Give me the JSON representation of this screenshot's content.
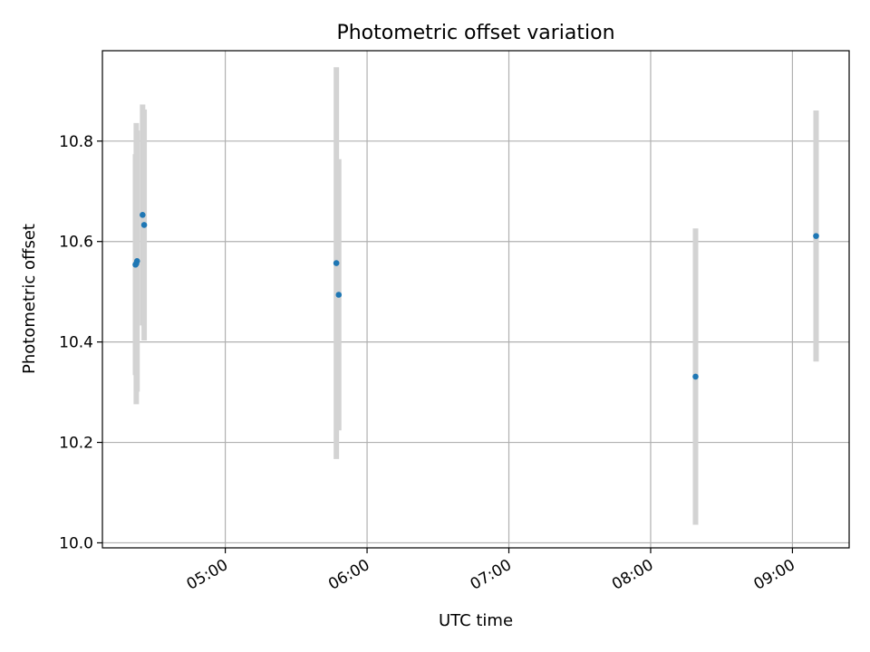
{
  "chart_data": {
    "type": "scatter",
    "title": "Photometric offset variation",
    "xlabel": "UTC time",
    "ylabel": "Photometric offset",
    "x_axis_kind": "time",
    "xlim": [
      "04:08",
      "09:24"
    ],
    "ylim": [
      9.99,
      10.98
    ],
    "x_ticks": [
      "05:00",
      "06:00",
      "07:00",
      "08:00",
      "09:00"
    ],
    "y_ticks": [
      "10.0",
      "10.2",
      "10.4",
      "10.6",
      "10.8"
    ],
    "grid": true,
    "marker_color": "#1f77b4",
    "errorbar_color": "#d3d3d3",
    "points": [
      {
        "x": "04:22:00",
        "y": 10.554,
        "err": 0.22
      },
      {
        "x": "04:22:20",
        "y": 10.556,
        "err": 0.28
      },
      {
        "x": "04:22:40",
        "y": 10.561,
        "err": 0.26
      },
      {
        "x": "04:25:00",
        "y": 10.653,
        "err": 0.22
      },
      {
        "x": "04:25:40",
        "y": 10.633,
        "err": 0.23
      },
      {
        "x": "05:47:00",
        "y": 10.557,
        "err": 0.39
      },
      {
        "x": "05:48:00",
        "y": 10.494,
        "err": 0.27
      },
      {
        "x": "08:19:00",
        "y": 10.331,
        "err": 0.295
      },
      {
        "x": "09:10:00",
        "y": 10.611,
        "err": 0.25
      }
    ]
  }
}
